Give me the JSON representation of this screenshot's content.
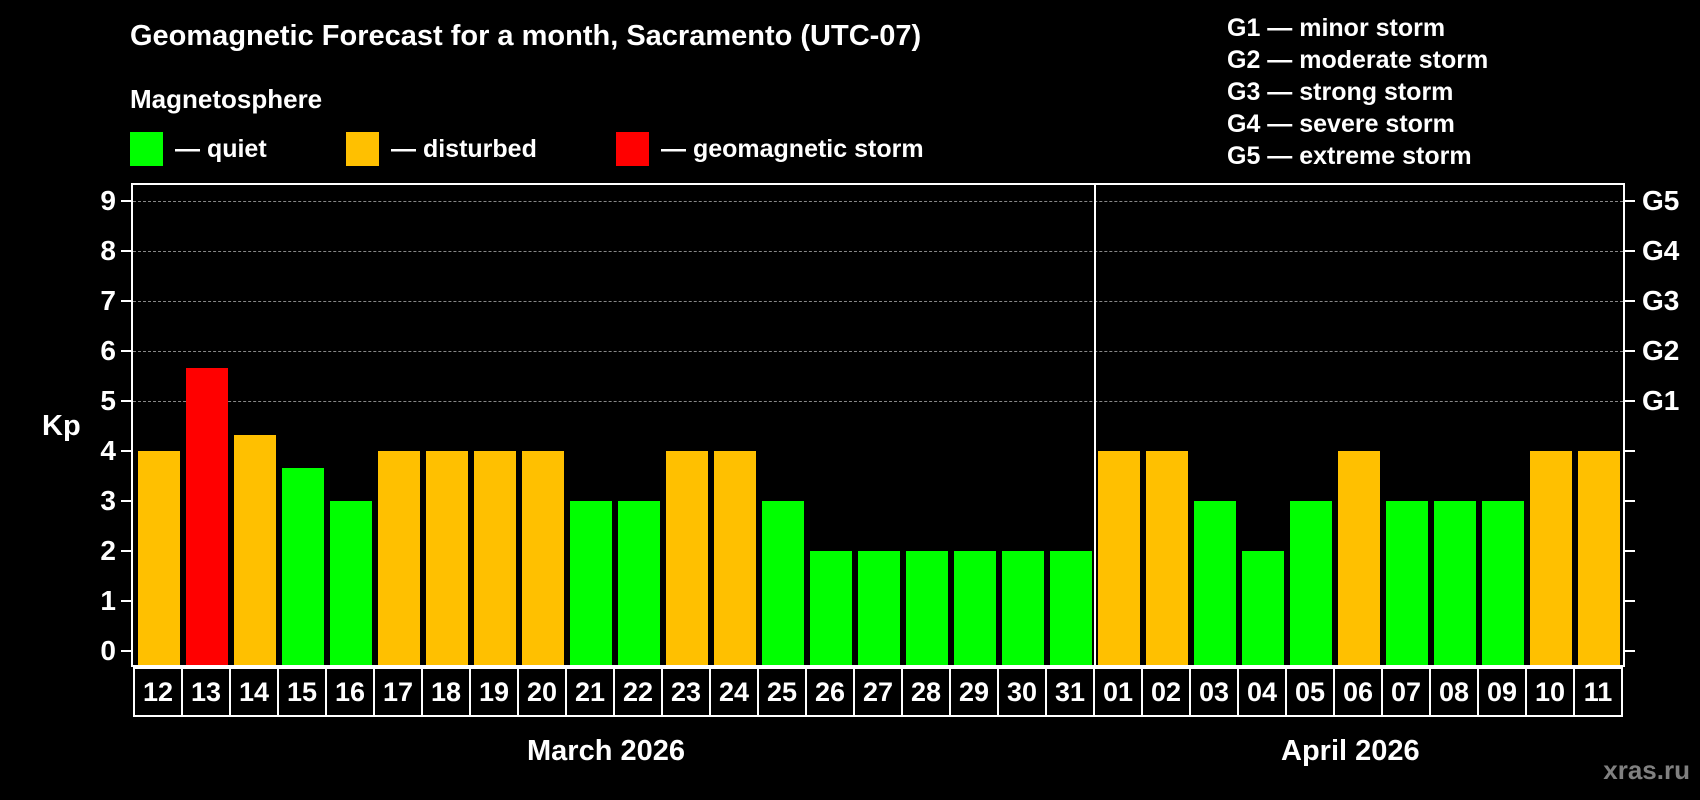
{
  "title": "Geomagnetic Forecast for a month, Sacramento (UTC-07)",
  "subtitle": "Magnetosphere",
  "legend": [
    {
      "label": "— quiet",
      "color": "#00ff00"
    },
    {
      "label": "— disturbed",
      "color": "#ffc000"
    },
    {
      "label": "— geomagnetic storm",
      "color": "#ff0000"
    }
  ],
  "g_legend": [
    "G1 — minor storm",
    "G2 — moderate storm",
    "G3 — strong storm",
    "G4 — severe storm",
    "G5 — extreme storm"
  ],
  "y_axis_label": "Kp",
  "watermark": "xras.ru",
  "months": [
    "March 2026",
    "April 2026"
  ],
  "chart_data": {
    "type": "bar",
    "title": "Geomagnetic Forecast for a month, Sacramento (UTC-07)",
    "xlabel": "",
    "ylabel": "Kp",
    "ylim": [
      0,
      9
    ],
    "yticks": [
      0,
      1,
      2,
      3,
      4,
      5,
      6,
      7,
      8,
      9
    ],
    "right_ticks": [
      {
        "kp": 5,
        "label": "G1"
      },
      {
        "kp": 6,
        "label": "G2"
      },
      {
        "kp": 7,
        "label": "G3"
      },
      {
        "kp": 8,
        "label": "G4"
      },
      {
        "kp": 9,
        "label": "G5"
      }
    ],
    "grid": true,
    "categories": [
      "12",
      "13",
      "14",
      "15",
      "16",
      "17",
      "18",
      "19",
      "20",
      "21",
      "22",
      "23",
      "24",
      "25",
      "26",
      "27",
      "28",
      "29",
      "30",
      "31",
      "01",
      "02",
      "03",
      "04",
      "05",
      "06",
      "07",
      "08",
      "09",
      "10",
      "11"
    ],
    "month_groups": [
      {
        "label": "March 2026",
        "start": 0,
        "count": 20
      },
      {
        "label": "April 2026",
        "start": 20,
        "count": 11
      }
    ],
    "values": [
      4,
      5.67,
      4.33,
      3.67,
      3,
      4,
      4,
      4,
      4,
      3,
      3,
      4,
      4,
      3,
      2,
      2,
      2,
      2,
      2,
      2,
      4,
      4,
      3,
      2,
      3,
      4,
      3,
      3,
      3,
      4,
      4
    ],
    "status": [
      "disturbed",
      "storm",
      "disturbed",
      "quiet",
      "quiet",
      "disturbed",
      "disturbed",
      "disturbed",
      "disturbed",
      "quiet",
      "quiet",
      "disturbed",
      "disturbed",
      "quiet",
      "quiet",
      "quiet",
      "quiet",
      "quiet",
      "quiet",
      "quiet",
      "disturbed",
      "disturbed",
      "quiet",
      "quiet",
      "quiet",
      "disturbed",
      "quiet",
      "quiet",
      "quiet",
      "disturbed",
      "disturbed"
    ],
    "colors": {
      "quiet": "#00ff00",
      "disturbed": "#ffc000",
      "storm": "#ff0000"
    }
  }
}
